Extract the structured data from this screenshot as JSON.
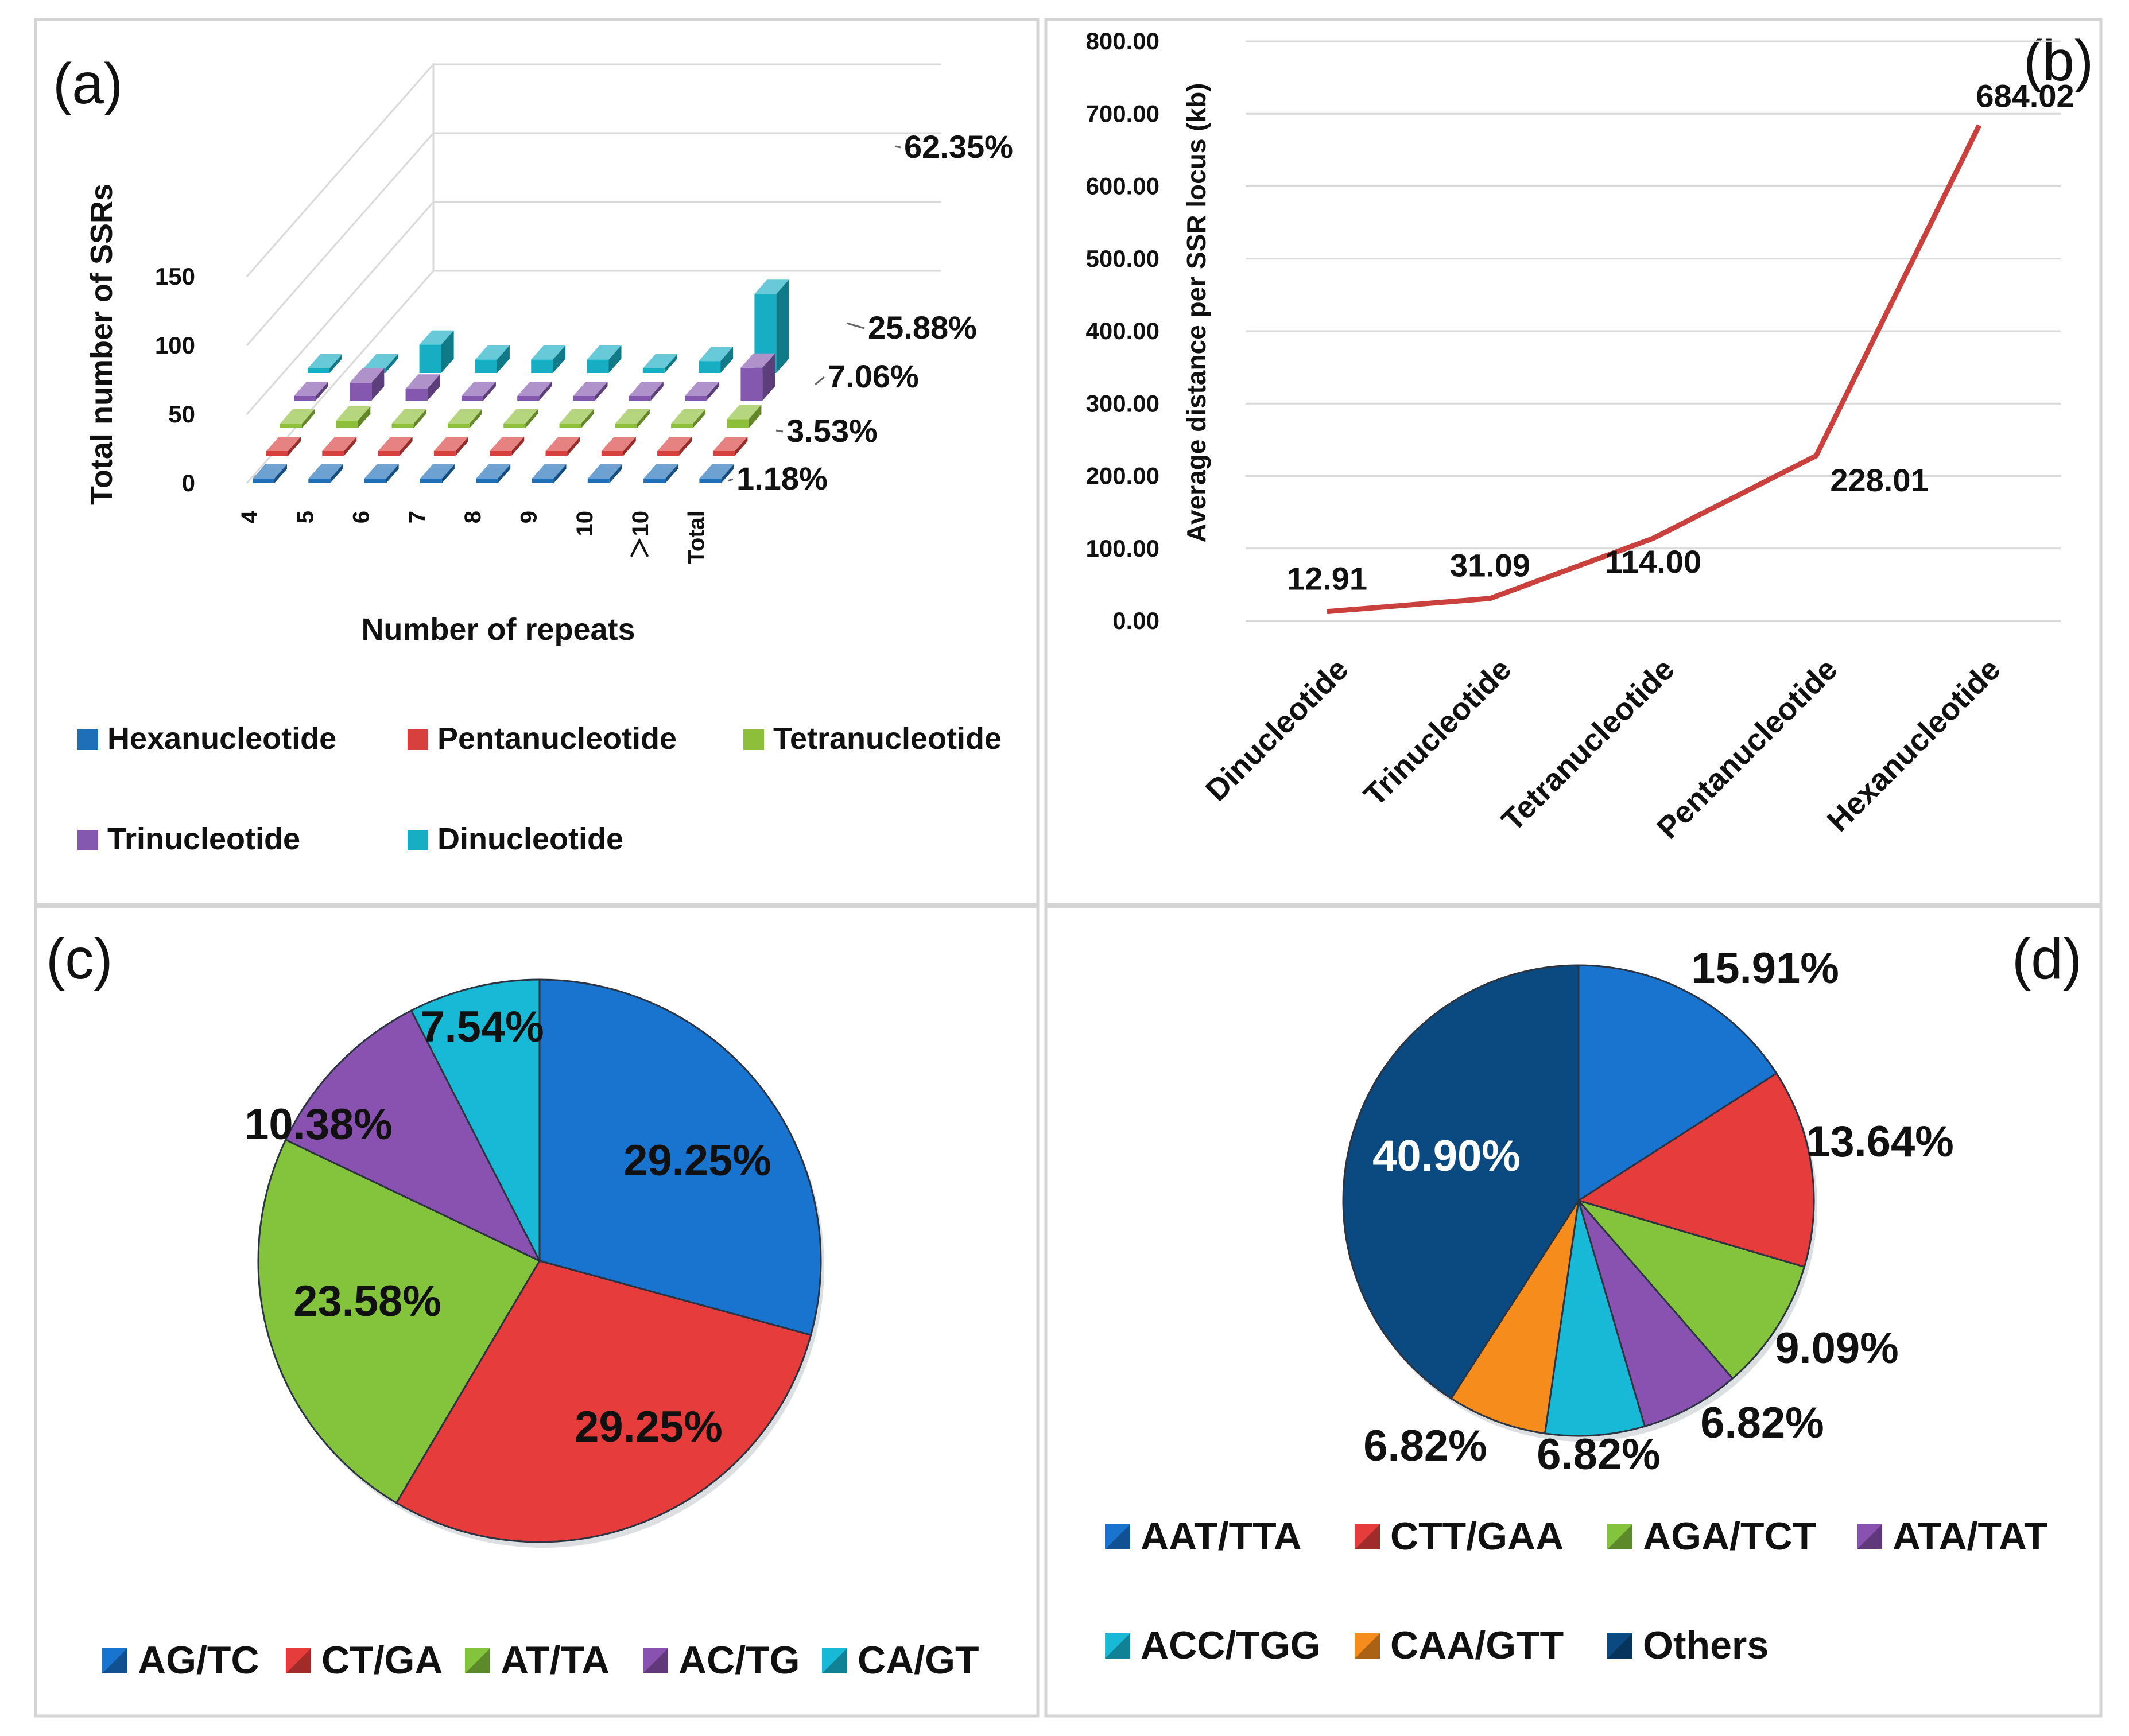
{
  "colors": {
    "hexa": "#1f6fb8",
    "penta": "#d8403e",
    "tetra": "#8dbf3a",
    "tri": "#8458ae",
    "di": "#17aec4",
    "line": "#c9403c",
    "pie_c": [
      "#1874cf",
      "#e63c3c",
      "#84c43c",
      "#8a52b0",
      "#18b9d6"
    ],
    "pie_d": [
      "#1874cf",
      "#e63c3c",
      "#84c43c",
      "#8a52b0",
      "#18b9d6",
      "#f58c1c",
      "#0a4a80"
    ]
  },
  "chart_data": [
    {
      "panel": "a",
      "tag": "(a)",
      "type": "bar",
      "style": "3d-stacked-rows",
      "xlabel": "Number of repeats",
      "ylabel": "Total number of SSRs",
      "yticks": [
        "0",
        "50",
        "100",
        "150"
      ],
      "ylim": [
        0,
        150
      ],
      "categories": [
        "4",
        "5",
        "6",
        "7",
        "8",
        "9",
        "10",
        "＞10",
        "Total"
      ],
      "series": [
        {
          "name": "Hexanucleotide",
          "key": "hexa",
          "values": [
            1,
            1,
            1,
            1,
            1,
            1,
            1,
            1,
            1
          ]
        },
        {
          "name": "Pentanucleotide",
          "key": "penta",
          "values": [
            3,
            1,
            1,
            1,
            1,
            1,
            1,
            1,
            3
          ]
        },
        {
          "name": "Tetranucleotide",
          "key": "tetra",
          "values": [
            1,
            5,
            1,
            1,
            1,
            1,
            1,
            1,
            6
          ]
        },
        {
          "name": "Trinucleotide",
          "key": "tri",
          "values": [
            1,
            12,
            8,
            1,
            1,
            1,
            1,
            1,
            22
          ]
        },
        {
          "name": "Dinucleotide",
          "key": "di",
          "values": [
            1,
            1,
            19,
            9,
            9,
            9,
            3,
            8,
            53
          ]
        }
      ],
      "total_labels": [
        "1.18%",
        "3.53%",
        "7.06%",
        "25.88%",
        "62.35%"
      ],
      "legend": [
        "Hexanucleotide",
        "Pentanucleotide",
        "Tetranucleotide",
        "Trinucleotide",
        "Dinucleotide"
      ]
    },
    {
      "panel": "b",
      "tag": "(b)",
      "type": "line",
      "ylabel": "Average distance per SSR locus (kb)",
      "categories": [
        "Dinucleotide",
        "Trinucleotide",
        "Tetranucleotide",
        "Pentanucleotide",
        "Hexanucleotide"
      ],
      "values": [
        12.91,
        31.09,
        114.0,
        228.01,
        684.02
      ],
      "data_labels": [
        "12.91",
        "31.09",
        "114.00",
        "228.01",
        "684.02"
      ],
      "ylim": [
        0,
        800
      ],
      "yticks": [
        "0.00",
        "100.00",
        "200.00",
        "300.00",
        "400.00",
        "500.00",
        "600.00",
        "700.00",
        "800.00"
      ]
    },
    {
      "panel": "c",
      "tag": "(c)",
      "type": "pie",
      "categories": [
        "AG/TC",
        "CT/GA",
        "AT/TA",
        "AC/TG",
        "CA/GT"
      ],
      "values": [
        29.25,
        29.25,
        23.58,
        10.38,
        7.54
      ],
      "labels": [
        "29.25%",
        "29.25%",
        "23.58%",
        "10.38%",
        "7.54%"
      ]
    },
    {
      "panel": "d",
      "tag": "(d)",
      "type": "pie",
      "categories": [
        "AAT/TTA",
        "CTT/GAA",
        "AGA/TCT",
        "ATA/TAT",
        "ACC/TGG",
        "CAA/GTT",
        "Others"
      ],
      "values": [
        15.91,
        13.64,
        9.09,
        6.82,
        6.82,
        6.82,
        40.9
      ],
      "labels": [
        "15.91%",
        "13.64%",
        "9.09%",
        "6.82%",
        "6.82%",
        "6.82%",
        "40.90%"
      ]
    }
  ]
}
